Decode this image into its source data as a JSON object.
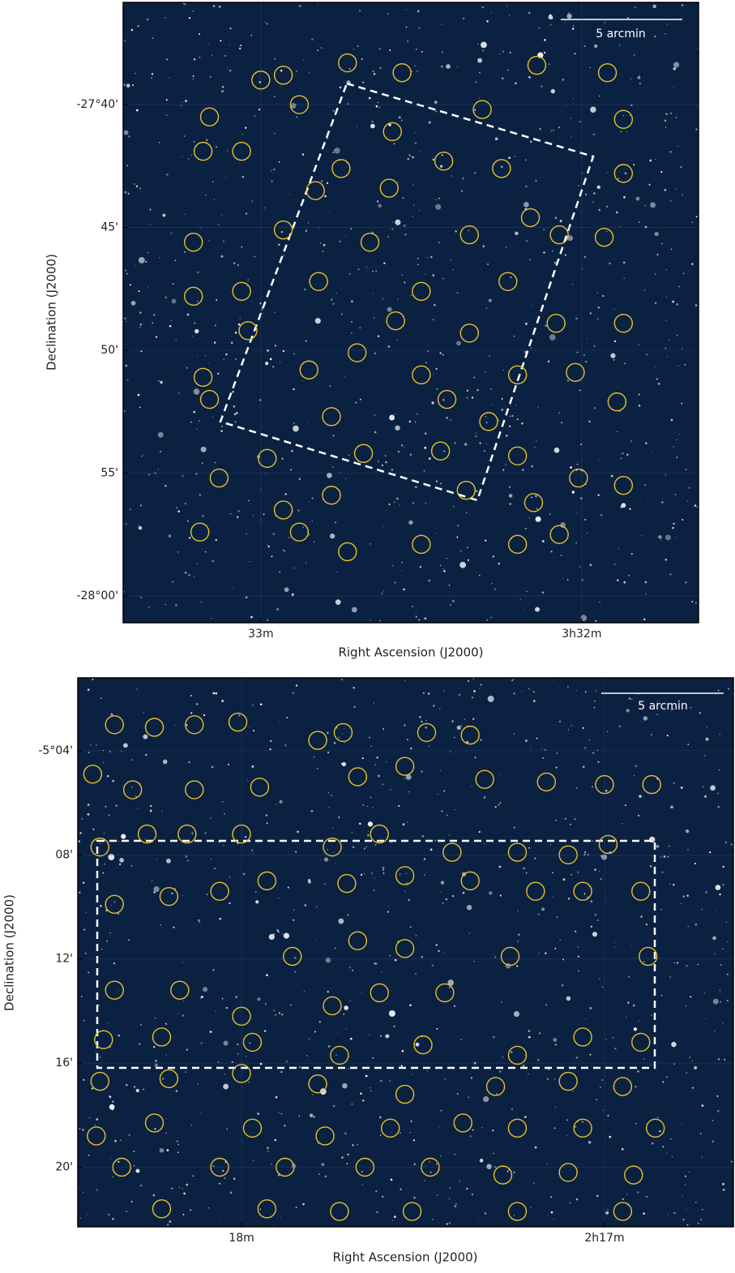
{
  "chart_data": [
    {
      "type": "scatter",
      "xlabel": "Right Ascension (J2000)",
      "ylabel": "Declination (J2000)",
      "scale_bar_label": "5 arcmin",
      "xlim": [
        213.429,
        211.636
      ],
      "ylim": [
        -1681.09,
        -1655.84
      ],
      "xticks": [
        {
          "value": 213,
          "label": "33m"
        },
        {
          "value": 212,
          "label": "3h32m"
        }
      ],
      "yticks": [
        {
          "value": -1660,
          "label": "-27°40'"
        },
        {
          "value": -1665,
          "label": "45'"
        },
        {
          "value": -1670,
          "label": "50'"
        },
        {
          "value": -1675,
          "label": "55'"
        },
        {
          "value": -1680,
          "label": "-28°00'"
        }
      ],
      "color": "#e6c229",
      "x": [
        213.0,
        212.93,
        212.73,
        212.56,
        212.14,
        211.92,
        213.16,
        212.88,
        212.59,
        212.31,
        211.87,
        213.18,
        213.06,
        212.75,
        212.43,
        212.25,
        211.87,
        212.83,
        212.6,
        212.16,
        212.07,
        213.21,
        212.93,
        212.66,
        212.35,
        211.93,
        213.21,
        213.06,
        212.82,
        212.5,
        212.23,
        213.04,
        212.7,
        212.58,
        212.35,
        212.08,
        211.87,
        213.18,
        212.85,
        212.5,
        212.2,
        212.02,
        213.16,
        212.78,
        212.42,
        212.29,
        211.89,
        212.98,
        212.68,
        212.44,
        212.2,
        212.01,
        213.13,
        212.93,
        212.78,
        212.36,
        212.15,
        211.87,
        213.19,
        212.88,
        212.73,
        212.5,
        212.2,
        212.07
      ],
      "values": [
        -1659.0,
        -1658.8,
        -1658.3,
        -1658.7,
        -1658.4,
        -1658.7,
        -1660.5,
        -1660.0,
        -1661.1,
        -1660.2,
        -1660.6,
        -1661.9,
        -1661.9,
        -1662.6,
        -1662.3,
        -1662.6,
        -1662.8,
        -1663.5,
        -1663.4,
        -1664.6,
        -1665.3,
        -1665.6,
        -1665.1,
        -1665.6,
        -1665.3,
        -1665.4,
        -1667.8,
        -1667.6,
        -1667.2,
        -1667.6,
        -1667.2,
        -1669.2,
        -1670.1,
        -1668.8,
        -1669.3,
        -1668.9,
        -1668.9,
        -1671.1,
        -1670.8,
        -1671.0,
        -1671.0,
        -1670.9,
        -1672.0,
        -1672.7,
        -1672.0,
        -1672.9,
        -1672.1,
        -1674.4,
        -1674.2,
        -1674.1,
        -1674.3,
        -1675.2,
        -1675.2,
        -1676.5,
        -1675.9,
        -1675.7,
        -1676.2,
        -1675.5,
        -1677.4,
        -1677.4,
        -1678.2,
        -1677.9,
        -1677.9,
        -1677.5
      ]
    },
    {
      "type": "scatter",
      "xlabel": "Right Ascension (J2000)",
      "ylabel": "Declination (J2000)",
      "scale_bar_label": "5 arcmin",
      "xlim": [
        138.451,
        136.645
      ],
      "ylim": [
        -322.29,
        -301.2
      ],
      "xticks": [
        {
          "value": 138,
          "label": "18m"
        },
        {
          "value": 137,
          "label": "2h17m"
        }
      ],
      "yticks": [
        {
          "value": -304,
          "label": "-5°04'"
        },
        {
          "value": -308,
          "label": "08'"
        },
        {
          "value": -312,
          "label": "12'"
        },
        {
          "value": -316,
          "label": "16'"
        },
        {
          "value": -320,
          "label": "20'"
        }
      ],
      "color": "#e6c229",
      "x": [
        138.35,
        138.24,
        138.13,
        138.01,
        137.79,
        137.72,
        137.49,
        137.37,
        138.41,
        138.3,
        138.13,
        137.95,
        137.68,
        137.55,
        137.33,
        137.16,
        137.0,
        136.87,
        138.39,
        138.26,
        138.15,
        138.0,
        137.75,
        137.62,
        137.42,
        137.24,
        137.1,
        136.99,
        138.35,
        138.2,
        138.06,
        137.93,
        137.71,
        137.55,
        137.37,
        137.19,
        137.06,
        136.9,
        137.86,
        137.68,
        137.55,
        137.26,
        136.88,
        138.35,
        138.17,
        138.0,
        137.75,
        137.62,
        137.44,
        138.38,
        138.22,
        137.97,
        137.73,
        137.5,
        137.24,
        137.06,
        136.9,
        138.39,
        138.2,
        138.0,
        137.79,
        137.55,
        137.3,
        137.1,
        136.95,
        138.4,
        138.24,
        137.97,
        137.77,
        137.59,
        137.39,
        137.24,
        137.06,
        136.86,
        138.33,
        138.06,
        137.88,
        137.66,
        137.48,
        137.28,
        137.1,
        136.92,
        138.22,
        137.93,
        137.73,
        137.53,
        137.24,
        136.95
      ],
      "values": [
        -303.0,
        -303.1,
        -303.0,
        -302.9,
        -303.6,
        -303.3,
        -303.3,
        -303.4,
        -304.9,
        -305.5,
        -305.5,
        -305.4,
        -305.0,
        -304.6,
        -305.1,
        -305.2,
        -305.3,
        -305.3,
        -307.7,
        -307.2,
        -307.2,
        -307.2,
        -307.7,
        -307.2,
        -307.9,
        -307.9,
        -308.0,
        -307.6,
        -309.9,
        -309.6,
        -309.4,
        -309.0,
        -309.1,
        -308.8,
        -309.0,
        -309.4,
        -309.4,
        -309.4,
        -311.9,
        -311.3,
        -311.6,
        -311.9,
        -311.9,
        -313.2,
        -313.2,
        -314.2,
        -313.8,
        -313.3,
        -313.3,
        -315.1,
        -315.0,
        -315.2,
        -315.7,
        -315.3,
        -315.7,
        -315.0,
        -315.2,
        -316.7,
        -316.6,
        -316.4,
        -316.8,
        -317.2,
        -316.9,
        -316.7,
        -316.9,
        -318.8,
        -318.3,
        -318.5,
        -318.8,
        -318.5,
        -318.3,
        -318.5,
        -318.5,
        -318.5,
        -320.0,
        -320.0,
        -320.0,
        -320.0,
        -320.0,
        -320.3,
        -320.2,
        -320.3,
        -321.6,
        -321.6,
        -321.7,
        -321.7,
        -321.7,
        -321.7
      ]
    }
  ]
}
